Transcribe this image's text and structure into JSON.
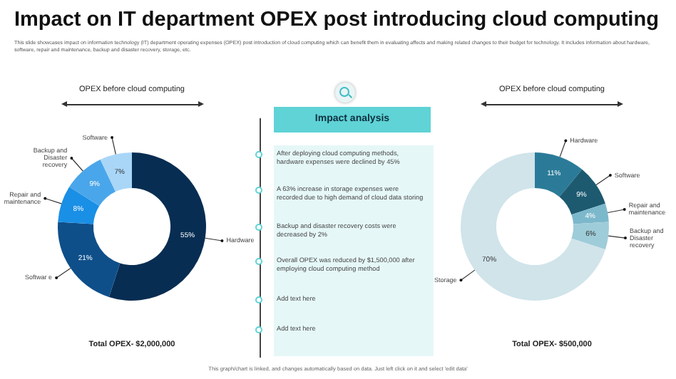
{
  "chart_data": [
    {
      "type": "donut",
      "title": "Impact on IT department OPEX post introducing cloud computing",
      "subtitle": "This slide showcases impact on information technology (IT) department operating expenses (OPEX) post introduction of cloud computing which can benefit them in evaluating affects and making related changes to their budget for technology. It includes information about hardware, software, repair and maintenance, backup and disaster recovery, storage, etc.",
      "legend_title": "OPEX before cloud computing",
      "categories": [
        "Hardware",
        "Softwar e",
        "Repair and maintenance",
        "Backup and Disaster recovery",
        "Software"
      ],
      "values": [
        55,
        21,
        8,
        9,
        7
      ],
      "value_labels": [
        "55%",
        "21%",
        "8%",
        "9%",
        "7%"
      ],
      "colors": [
        "#082d52",
        "#0e4f8a",
        "#1a8fe6",
        "#4aa6ea",
        "#a9d6f7"
      ],
      "legend": false,
      "annotations": [
        "Total OPEX- $2,000,000",
        "This graph/chart is linked, and changes automatically based on data. Just left click on it and select 'edit data'"
      ]
    },
    {
      "type": "other",
      "title": "Impact analysis",
      "annotations": [
        "After deploying cloud computing methods, hardware expenses were declined by 45%",
        "A 63% increase in storage expenses were recorded due to high demand of cloud data storing",
        "Backup and disaster recovery costs were decreased by 2%",
        "Overall OPEX was reduced by $1,500,000 after employing cloud computing method",
        "Add text here",
        "Add text here"
      ]
    },
    {
      "type": "donut",
      "legend_title": "OPEX before cloud computing",
      "categories": [
        "Hardware",
        "Software",
        "Repair and maintenance",
        "Backup and Disaster recovery",
        "Storage"
      ],
      "values": [
        11,
        9,
        4,
        6,
        70
      ],
      "value_labels": [
        "11%",
        "9%",
        "4%",
        "6%",
        "70%"
      ],
      "colors": [
        "#2b7b98",
        "#1d5a70",
        "#7cb8cb",
        "#9fccd9",
        "#d0e4ea"
      ],
      "legend": false,
      "annotations": [
        "Total OPEX- $500,000"
      ]
    }
  ]
}
